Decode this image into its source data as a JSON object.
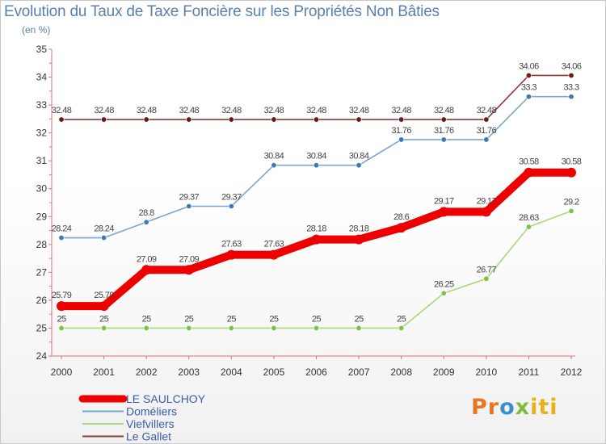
{
  "header": {
    "title": "Evolution du Taux de Taxe Foncière sur les Propriétés Non Bâties",
    "unit": "(en %)"
  },
  "chart_data": {
    "type": "line",
    "title": "Evolution du Taux de Taxe Foncière sur les Propriétés Non Bâties",
    "ylabel": "(en %)",
    "xlabel": "",
    "ylim": [
      24,
      35
    ],
    "yticks": [
      24,
      25,
      26,
      27,
      28,
      29,
      30,
      31,
      32,
      33,
      34,
      35
    ],
    "categories": [
      "2000",
      "2001",
      "2002",
      "2003",
      "2004",
      "2005",
      "2006",
      "2007",
      "2008",
      "2009",
      "2010",
      "2011",
      "2012"
    ],
    "grid": false,
    "legend": "bottom-left",
    "series": [
      {
        "name": "Le Gallet",
        "color": "#8b3a3a",
        "marker": "#6b1a1a",
        "values": [
          32.48,
          32.48,
          32.48,
          32.48,
          32.48,
          32.48,
          32.48,
          32.48,
          32.48,
          32.48,
          32.48,
          34.06,
          34.06
        ],
        "labels": [
          "32.48",
          "32.48",
          "32.48",
          "32.48",
          "32.48",
          "32.48",
          "32.48",
          "32.48",
          "32.48",
          "32.48",
          "32.48",
          "34.06",
          "34.06"
        ]
      },
      {
        "name": "Doméliers",
        "color": "#7aa6d2",
        "marker": "#3f78b5",
        "values": [
          28.24,
          28.24,
          28.8,
          29.37,
          29.37,
          30.84,
          30.84,
          30.84,
          31.76,
          31.76,
          31.76,
          33.3,
          33.3
        ],
        "labels": [
          "28.24",
          "28.24",
          "28.8",
          "29.37",
          "29.37",
          "30.84",
          "30.84",
          "30.84",
          "31.76",
          "31.76",
          "31.76",
          "33.3",
          "33.3"
        ]
      },
      {
        "name": "Viefvillers",
        "color": "#a8d880",
        "marker": "#7cc24a",
        "values": [
          25,
          25,
          25,
          25,
          25,
          25,
          25,
          25,
          25,
          26.25,
          26.77,
          28.63,
          29.2
        ],
        "labels": [
          "25",
          "25",
          "25",
          "25",
          "25",
          "25",
          "25",
          "25",
          "25",
          "26.25",
          "26.77",
          "28.63",
          "29.2"
        ]
      },
      {
        "name": "LE SAULCHOY",
        "color": "#ee0000",
        "marker": "#ee0000",
        "values": [
          25.79,
          25.79,
          27.09,
          27.09,
          27.63,
          27.63,
          28.18,
          28.18,
          28.6,
          29.17,
          29.17,
          30.58,
          30.58
        ],
        "labels": [
          "25.79",
          "25.79",
          "27.09",
          "27.09",
          "27.63",
          "27.63",
          "28.18",
          "28.18",
          "28.6",
          "29.17",
          "29.17",
          "30.58",
          "30.58"
        ]
      }
    ],
    "legend_entries": [
      {
        "name": "LE SAULCHOY",
        "color": "#ee0000",
        "text_color": "#3b5db0"
      },
      {
        "name": "Doméliers",
        "color": "#7aa6d2",
        "text_color": "#3b5db0"
      },
      {
        "name": "Viefvillers",
        "color": "#a8d880",
        "text_color": "#3b5db0"
      },
      {
        "name": "Le Gallet",
        "color": "#8b3a3a",
        "text_color": "#3b5db0"
      }
    ]
  },
  "logo": {
    "p1": "Pr",
    "p2": "o",
    "p3": "x",
    "p4": "iti"
  }
}
